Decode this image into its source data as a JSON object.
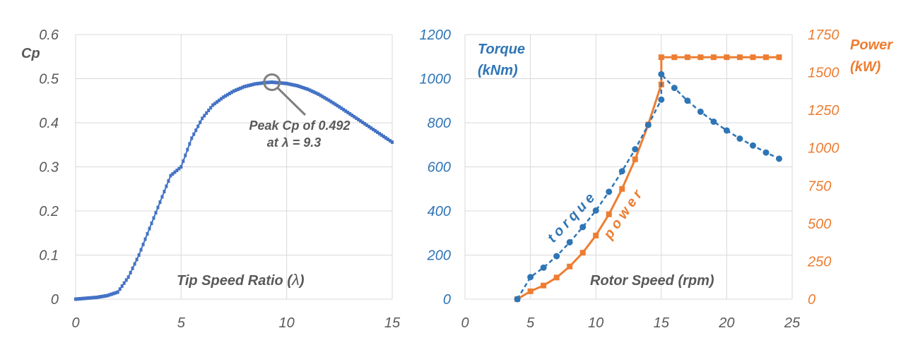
{
  "colors": {
    "cp": "#4472C4",
    "torque": "#2E75B6",
    "power": "#ED7D31",
    "grid": "#D9D9D9",
    "tick": "#595959",
    "annotation": "#7F7F7F"
  },
  "chart_data": [
    {
      "type": "line",
      "title": "",
      "xlabel_text": "Tip Speed Ratio (",
      "xlabel_symbol": "λ",
      "xlabel_close": ")",
      "ylabel": "Cp",
      "xlim": [
        0,
        15
      ],
      "ylim": [
        0,
        0.6
      ],
      "xticks": [
        0,
        5,
        10,
        15
      ],
      "yticks": [
        0,
        0.1,
        0.2,
        0.3,
        0.4,
        0.5,
        0.6
      ],
      "xtick_labels": [
        "0",
        "5",
        "10",
        "15"
      ],
      "ytick_labels": [
        "0",
        "0.1",
        "0.2",
        "0.3",
        "0.4",
        "0.5",
        "0.6"
      ],
      "series": [
        {
          "name": "Cp",
          "points": [
            [
              0,
              0
            ],
            [
              0.5,
              0.002
            ],
            [
              1,
              0.004
            ],
            [
              1.5,
              0.008
            ],
            [
              2,
              0.016
            ],
            [
              2.5,
              0.05
            ],
            [
              3,
              0.1
            ],
            [
              3.5,
              0.16
            ],
            [
              4,
              0.22
            ],
            [
              4.5,
              0.28
            ],
            [
              5,
              0.3
            ],
            [
              5.5,
              0.365
            ],
            [
              6,
              0.41
            ],
            [
              6.5,
              0.44
            ],
            [
              7,
              0.458
            ],
            [
              7.5,
              0.472
            ],
            [
              8,
              0.482
            ],
            [
              8.5,
              0.488
            ],
            [
              9,
              0.491
            ],
            [
              9.3,
              0.492
            ],
            [
              10,
              0.489
            ],
            [
              10.5,
              0.484
            ],
            [
              11,
              0.476
            ],
            [
              11.5,
              0.465
            ],
            [
              12,
              0.451
            ],
            [
              12.5,
              0.436
            ],
            [
              13,
              0.42
            ],
            [
              13.5,
              0.404
            ],
            [
              14,
              0.388
            ],
            [
              14.5,
              0.372
            ],
            [
              15,
              0.356
            ]
          ]
        }
      ],
      "annotation": {
        "line1": "Peak Cp of 0.492",
        "line2": "at λ = 9.3",
        "x": 9.3,
        "y": 0.492
      }
    },
    {
      "type": "line",
      "title": "",
      "xlabel": "Rotor Speed  (rpm)",
      "xlim": [
        0,
        25
      ],
      "xticks": [
        0,
        5,
        10,
        15,
        20,
        25
      ],
      "xtick_labels": [
        "0",
        "5",
        "10",
        "15",
        "20",
        "25"
      ],
      "y_left": {
        "label_line1": "Torque",
        "label_line2": "(kNm)",
        "lim": [
          0,
          1200
        ],
        "ticks": [
          0,
          200,
          400,
          600,
          800,
          1000,
          1200
        ],
        "tick_labels": [
          "0",
          "200",
          "400",
          "600",
          "800",
          "1000",
          "1200"
        ]
      },
      "y_right": {
        "label_line1": "Power",
        "label_line2": "(kW)",
        "lim": [
          0,
          1750
        ],
        "ticks": [
          0,
          250,
          500,
          750,
          1000,
          1250,
          1500,
          1750
        ],
        "tick_labels": [
          "0",
          "250",
          "500",
          "750",
          "1000",
          "1250",
          "1500",
          "1750"
        ]
      },
      "series": [
        {
          "name": "torque",
          "axis": "left",
          "style": "dashed-circle",
          "inline_label": "torque",
          "points": [
            [
              4,
              0
            ],
            [
              5,
              100
            ],
            [
              6,
              143
            ],
            [
              7,
              195
            ],
            [
              8,
              258
            ],
            [
              9,
              327
            ],
            [
              10,
              402
            ],
            [
              11,
              487
            ],
            [
              12,
              580
            ],
            [
              13,
              680
            ],
            [
              14,
              790
            ],
            [
              15,
              905
            ],
            [
              15,
              1020
            ],
            [
              16,
              958
            ],
            [
              17,
              900
            ],
            [
              18,
              850
            ],
            [
              19,
              805
            ],
            [
              20,
              765
            ],
            [
              21,
              728
            ],
            [
              22,
              697
            ],
            [
              23,
              665
            ],
            [
              24,
              637
            ]
          ]
        },
        {
          "name": "power",
          "axis": "right",
          "style": "solid-square",
          "inline_label": "power",
          "points": [
            [
              4,
              0
            ],
            [
              5,
              52
            ],
            [
              6,
              90
            ],
            [
              7,
              143
            ],
            [
              8,
              216
            ],
            [
              9,
              307
            ],
            [
              10,
              421
            ],
            [
              11,
              561
            ],
            [
              12,
              729
            ],
            [
              13,
              925
            ],
            [
              14,
              1155
            ],
            [
              15,
              1420
            ],
            [
              15,
              1600
            ],
            [
              16,
              1600
            ],
            [
              17,
              1600
            ],
            [
              18,
              1600
            ],
            [
              19,
              1600
            ],
            [
              20,
              1600
            ],
            [
              21,
              1600
            ],
            [
              22,
              1600
            ],
            [
              23,
              1600
            ],
            [
              24,
              1600
            ]
          ]
        }
      ]
    }
  ]
}
